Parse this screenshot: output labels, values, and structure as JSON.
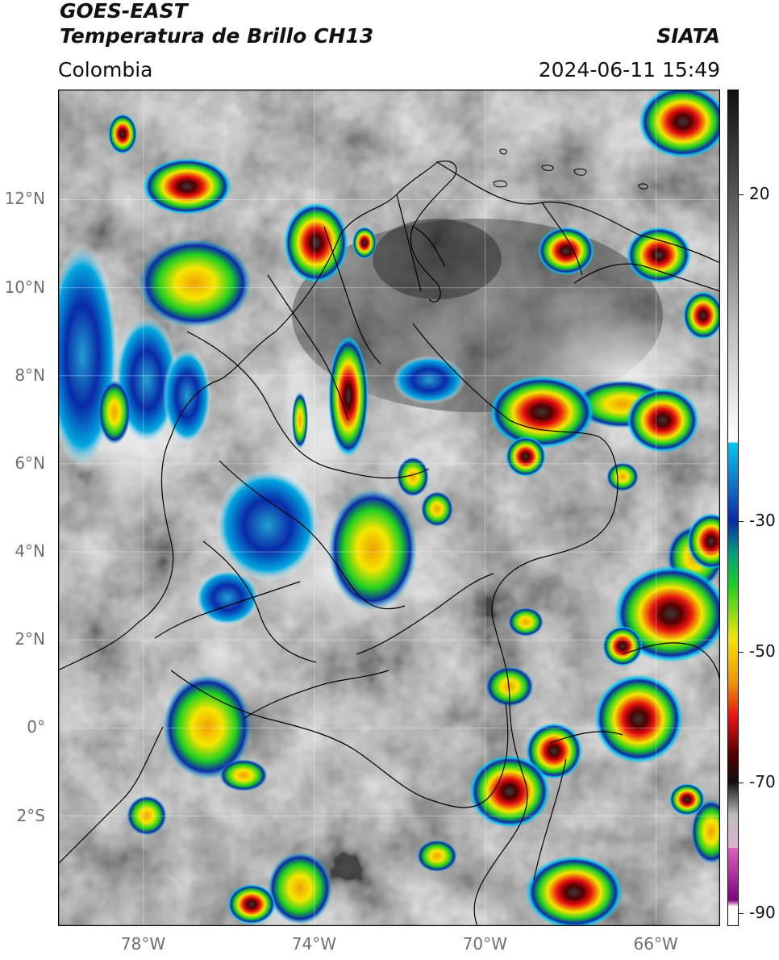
{
  "header": {
    "satellite": "GOES-EAST",
    "product": "Temperatura de Brillo CH13",
    "region": "Colombia",
    "source": "SIATA",
    "datetime": "2024-06-11 15:49"
  },
  "map": {
    "lon_range": [
      -80,
      -64.5
    ],
    "lat_range": [
      -4.5,
      14.5
    ],
    "lat_ticks": [
      {
        "value": 12,
        "label": "12°N"
      },
      {
        "value": 10,
        "label": "10°N"
      },
      {
        "value": 8,
        "label": "8°N"
      },
      {
        "value": 6,
        "label": "6°N"
      },
      {
        "value": 4,
        "label": "4°N"
      },
      {
        "value": 2,
        "label": "2°N"
      },
      {
        "value": 0,
        "label": "0°"
      },
      {
        "value": -2,
        "label": "2°S"
      }
    ],
    "lon_ticks": [
      {
        "value": -78,
        "label": "78°W"
      },
      {
        "value": -74,
        "label": "74°W"
      },
      {
        "value": -70,
        "label": "70°W"
      },
      {
        "value": -66,
        "label": "66°W"
      }
    ],
    "gridlines": true
  },
  "colorbar": {
    "range_c": [
      -92,
      36
    ],
    "tick_labels": [
      {
        "value": 20,
        "label": "20"
      },
      {
        "value": -30,
        "label": "-30"
      },
      {
        "value": -50,
        "label": "-50"
      },
      {
        "value": -70,
        "label": "-70"
      },
      {
        "value": -90,
        "label": "-90"
      }
    ],
    "colors": {
      "warm_top": "#111111",
      "warm_bottom": "#ffffff",
      "cyan": "#00c8f0",
      "blue": "#0a2aa8",
      "green": "#20d020",
      "yellow": "#f5e600",
      "red": "#e81010",
      "dark_red": "#500000",
      "gray": "#bdbdbd",
      "magenta": "#e060c0",
      "purple": "#800080"
    }
  }
}
